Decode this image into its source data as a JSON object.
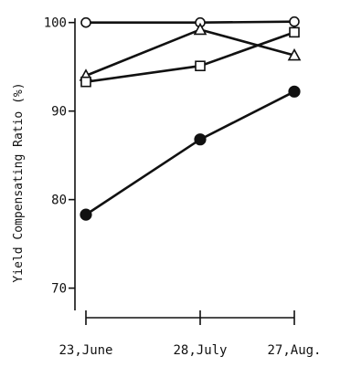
{
  "chart_data": {
    "type": "line",
    "title": "",
    "ylabel": "Yield Compensating Ratio (%)",
    "xlabel": "",
    "categories": [
      "23,June",
      "28,July",
      "27,Aug."
    ],
    "ylim": [
      68,
      101
    ],
    "yticks": [
      70,
      80,
      90,
      100
    ],
    "grid": false,
    "series": [
      {
        "marker": "open-circle",
        "values": [
          100.0,
          100.0,
          100.1
        ]
      },
      {
        "marker": "open-triangle",
        "values": [
          94.0,
          99.2,
          96.3
        ]
      },
      {
        "marker": "open-square",
        "values": [
          93.3,
          95.1,
          98.9
        ]
      },
      {
        "marker": "filled-circle",
        "values": [
          78.3,
          86.8,
          92.2
        ]
      }
    ]
  }
}
